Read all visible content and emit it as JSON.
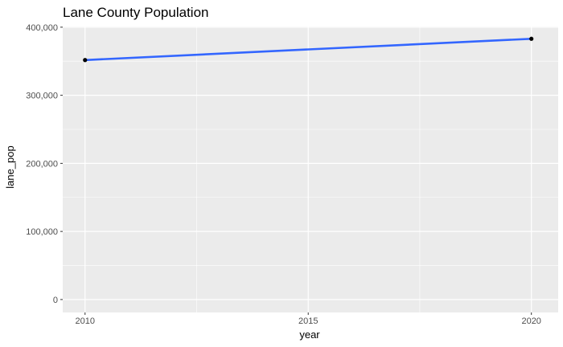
{
  "chart_data": {
    "type": "line",
    "title": "Lane County Population",
    "xlabel": "year",
    "ylabel": "lane_pop",
    "x": [
      2010,
      2020
    ],
    "series": [
      {
        "values": [
          351715,
          382971
        ]
      }
    ],
    "xlim": [
      2009.5,
      2020.6
    ],
    "ylim": [
      -19000,
      401000
    ],
    "x_ticks": [
      2010,
      2015,
      2020
    ],
    "x_tick_labels": [
      "2010",
      "2015",
      "2020"
    ],
    "y_ticks": [
      0,
      100000,
      200000,
      300000,
      400000
    ],
    "y_tick_labels": [
      "0",
      "100,000",
      "200,000",
      "300,000",
      "400,000"
    ],
    "grid": true,
    "colors": {
      "panel": "#ebebeb",
      "grid": "#ffffff",
      "line": "#3366ff",
      "point": "#000000"
    }
  }
}
